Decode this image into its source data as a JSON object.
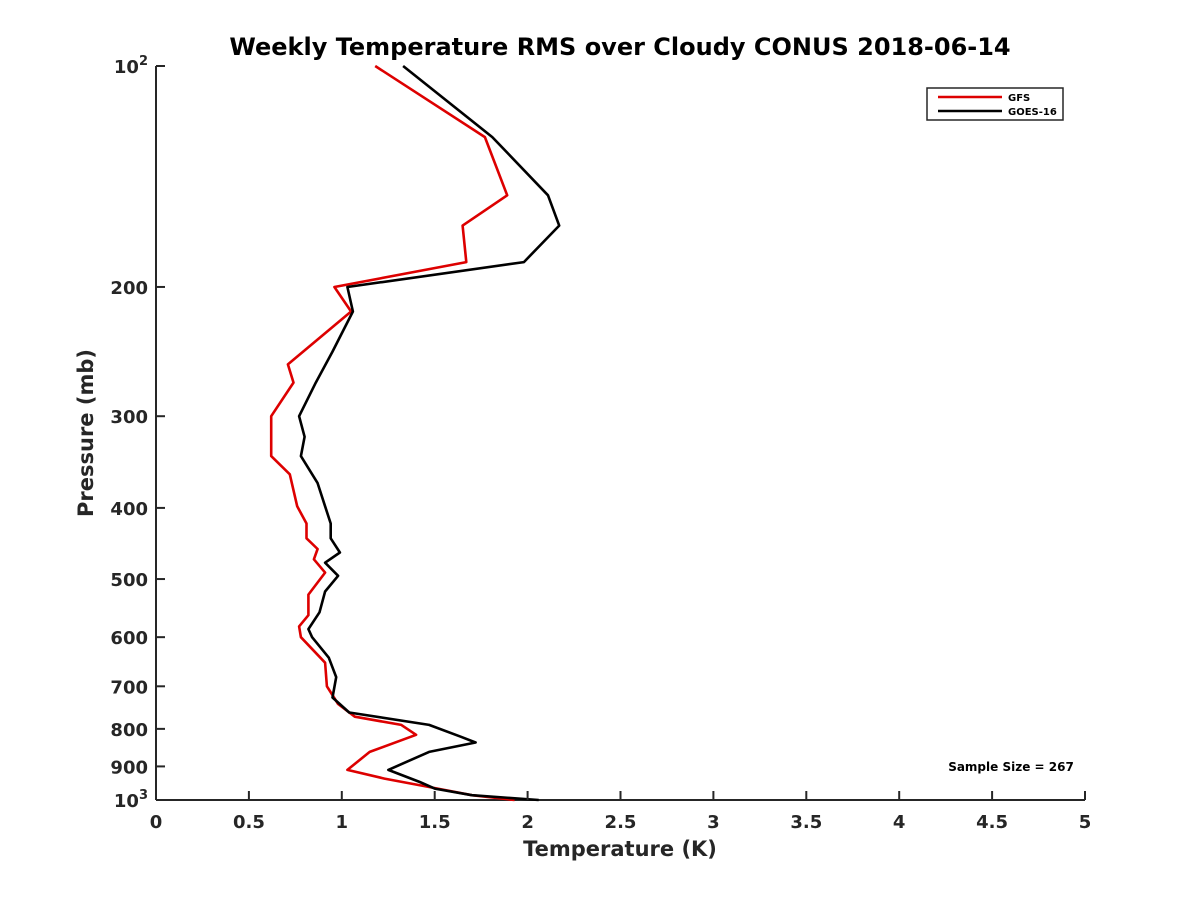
{
  "chart_data": {
    "type": "line",
    "title": "Weekly Temperature RMS over Cloudy CONUS 2018-06-14",
    "xlabel": "Temperature (K)",
    "ylabel": "Pressure (mb)",
    "xlim": [
      0,
      5
    ],
    "ylim": [
      100,
      1000
    ],
    "y_scale": "log",
    "y_reversed": true,
    "x_ticks": [
      "0",
      "0.5",
      "1",
      "1.5",
      "2",
      "2.5",
      "3",
      "3.5",
      "4",
      "4.5",
      "5"
    ],
    "x_tick_values": [
      0,
      0.5,
      1,
      1.5,
      2,
      2.5,
      3,
      3.5,
      4,
      4.5,
      5
    ],
    "y_ticks": [
      {
        "value": 100,
        "base": "10",
        "exp": "2"
      },
      {
        "value": 200,
        "label": "200"
      },
      {
        "value": 300,
        "label": "300"
      },
      {
        "value": 400,
        "label": "400"
      },
      {
        "value": 500,
        "label": "500"
      },
      {
        "value": 600,
        "label": "600"
      },
      {
        "value": 700,
        "label": "700"
      },
      {
        "value": 800,
        "label": "800"
      },
      {
        "value": 900,
        "label": "900"
      },
      {
        "value": 1000,
        "base": "10",
        "exp": "3"
      }
    ],
    "grid": false,
    "legend_position": "top-right",
    "annotation": "Sample Size = 267",
    "series": [
      {
        "name": "GFS",
        "color": "#dd0000",
        "points": [
          [
            1.18,
            100
          ],
          [
            1.77,
            125
          ],
          [
            1.89,
            150
          ],
          [
            1.65,
            165
          ],
          [
            1.67,
            185
          ],
          [
            0.96,
            200
          ],
          [
            1.05,
            216
          ],
          [
            0.71,
            255
          ],
          [
            0.74,
            270
          ],
          [
            0.62,
            300
          ],
          [
            0.62,
            340
          ],
          [
            0.72,
            360
          ],
          [
            0.76,
            398
          ],
          [
            0.81,
            420
          ],
          [
            0.81,
            440
          ],
          [
            0.87,
            455
          ],
          [
            0.85,
            470
          ],
          [
            0.91,
            490
          ],
          [
            0.82,
            525
          ],
          [
            0.82,
            560
          ],
          [
            0.77,
            580
          ],
          [
            0.78,
            600
          ],
          [
            0.91,
            650
          ],
          [
            0.92,
            700
          ],
          [
            0.98,
            740
          ],
          [
            1.07,
            770
          ],
          [
            1.32,
            790
          ],
          [
            1.4,
            815
          ],
          [
            1.15,
            860
          ],
          [
            1.03,
            910
          ],
          [
            1.23,
            935
          ],
          [
            1.47,
            960
          ],
          [
            1.7,
            985
          ],
          [
            1.93,
            1000
          ]
        ]
      },
      {
        "name": "GOES-16",
        "color": "#000000",
        "points": [
          [
            1.33,
            100
          ],
          [
            1.81,
            125
          ],
          [
            2.11,
            150
          ],
          [
            2.17,
            165
          ],
          [
            1.98,
            185
          ],
          [
            1.03,
            200
          ],
          [
            1.06,
            216
          ],
          [
            0.95,
            245
          ],
          [
            0.86,
            270
          ],
          [
            0.77,
            300
          ],
          [
            0.8,
            320
          ],
          [
            0.78,
            340
          ],
          [
            0.87,
            370
          ],
          [
            0.91,
            398
          ],
          [
            0.94,
            420
          ],
          [
            0.94,
            440
          ],
          [
            0.99,
            460
          ],
          [
            0.91,
            475
          ],
          [
            0.98,
            495
          ],
          [
            0.91,
            520
          ],
          [
            0.88,
            555
          ],
          [
            0.82,
            585
          ],
          [
            0.84,
            600
          ],
          [
            0.93,
            640
          ],
          [
            0.97,
            680
          ],
          [
            0.95,
            725
          ],
          [
            1.04,
            760
          ],
          [
            1.47,
            790
          ],
          [
            1.64,
            820
          ],
          [
            1.72,
            835
          ],
          [
            1.47,
            860
          ],
          [
            1.25,
            910
          ],
          [
            1.42,
            945
          ],
          [
            1.5,
            965
          ],
          [
            1.7,
            985
          ],
          [
            2.06,
            1000
          ]
        ]
      }
    ]
  }
}
